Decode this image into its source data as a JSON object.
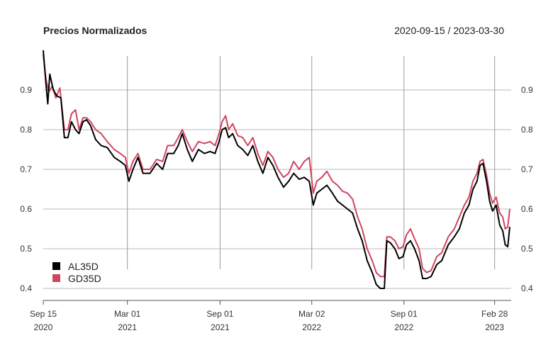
{
  "chart_data": {
    "type": "line",
    "title": "Precios Normalizados",
    "date_range": "2020-09-15 / 2023-03-30",
    "x_start": "2020-09-15",
    "x_end": "2023-03-30",
    "ylim": [
      0.38,
      1.0
    ],
    "y_ticks": [
      0.4,
      0.5,
      0.6,
      0.7,
      0.8,
      0.9
    ],
    "y_tick_labels": [
      "0.4",
      "0.5",
      "0.6",
      "0.7",
      "0.8",
      "0.9"
    ],
    "x_ticks": [
      {
        "date": "2020-09-15",
        "line1": "Sep 15",
        "line2": "2020"
      },
      {
        "date": "2021-03-01",
        "line1": "Mar 01",
        "line2": "2021"
      },
      {
        "date": "2021-09-01",
        "line1": "Sep 01",
        "line2": "2021"
      },
      {
        "date": "2022-03-02",
        "line1": "Mar 02",
        "line2": "2022"
      },
      {
        "date": "2022-09-01",
        "line1": "Sep 01",
        "line2": "2022"
      },
      {
        "date": "2023-02-28",
        "line1": "Feb 28",
        "line2": "2023"
      }
    ],
    "grid": true,
    "legend_position": "bottom-left",
    "series": [
      {
        "name": "AL35D",
        "color": "#000000",
        "points": [
          [
            "2020-09-15",
            1.0
          ],
          [
            "2020-09-20",
            0.92
          ],
          [
            "2020-09-24",
            0.865
          ],
          [
            "2020-09-28",
            0.94
          ],
          [
            "2020-10-05",
            0.9
          ],
          [
            "2020-10-12",
            0.885
          ],
          [
            "2020-10-20",
            0.88
          ],
          [
            "2020-10-27",
            0.78
          ],
          [
            "2020-11-03",
            0.78
          ],
          [
            "2020-11-10",
            0.82
          ],
          [
            "2020-11-18",
            0.8
          ],
          [
            "2020-11-25",
            0.79
          ],
          [
            "2020-12-03",
            0.82
          ],
          [
            "2020-12-10",
            0.825
          ],
          [
            "2020-12-18",
            0.81
          ],
          [
            "2020-12-28",
            0.775
          ],
          [
            "2021-01-08",
            0.76
          ],
          [
            "2021-01-20",
            0.755
          ],
          [
            "2021-02-03",
            0.73
          ],
          [
            "2021-02-15",
            0.72
          ],
          [
            "2021-02-25",
            0.71
          ],
          [
            "2021-03-04",
            0.67
          ],
          [
            "2021-03-12",
            0.7
          ],
          [
            "2021-03-22",
            0.73
          ],
          [
            "2021-04-01",
            0.69
          ],
          [
            "2021-04-15",
            0.69
          ],
          [
            "2021-04-28",
            0.715
          ],
          [
            "2021-05-10",
            0.7
          ],
          [
            "2021-05-20",
            0.74
          ],
          [
            "2021-06-01",
            0.74
          ],
          [
            "2021-06-10",
            0.76
          ],
          [
            "2021-06-18",
            0.79
          ],
          [
            "2021-06-28",
            0.75
          ],
          [
            "2021-07-08",
            0.72
          ],
          [
            "2021-07-20",
            0.75
          ],
          [
            "2021-08-01",
            0.74
          ],
          [
            "2021-08-12",
            0.745
          ],
          [
            "2021-08-22",
            0.74
          ],
          [
            "2021-08-30",
            0.77
          ],
          [
            "2021-09-05",
            0.8
          ],
          [
            "2021-09-12",
            0.805
          ],
          [
            "2021-09-18",
            0.78
          ],
          [
            "2021-09-26",
            0.79
          ],
          [
            "2021-10-06",
            0.76
          ],
          [
            "2021-10-16",
            0.75
          ],
          [
            "2021-10-26",
            0.735
          ],
          [
            "2021-11-05",
            0.76
          ],
          [
            "2021-11-15",
            0.72
          ],
          [
            "2021-11-25",
            0.69
          ],
          [
            "2021-12-05",
            0.73
          ],
          [
            "2021-12-15",
            0.71
          ],
          [
            "2021-12-25",
            0.68
          ],
          [
            "2022-01-05",
            0.655
          ],
          [
            "2022-01-15",
            0.67
          ],
          [
            "2022-01-25",
            0.69
          ],
          [
            "2022-02-05",
            0.675
          ],
          [
            "2022-02-15",
            0.68
          ],
          [
            "2022-02-25",
            0.67
          ],
          [
            "2022-03-05",
            0.61
          ],
          [
            "2022-03-12",
            0.64
          ],
          [
            "2022-03-22",
            0.65
          ],
          [
            "2022-04-01",
            0.66
          ],
          [
            "2022-04-12",
            0.64
          ],
          [
            "2022-04-22",
            0.62
          ],
          [
            "2022-05-02",
            0.61
          ],
          [
            "2022-05-12",
            0.6
          ],
          [
            "2022-05-22",
            0.59
          ],
          [
            "2022-06-01",
            0.55
          ],
          [
            "2022-06-10",
            0.52
          ],
          [
            "2022-06-20",
            0.47
          ],
          [
            "2022-06-30",
            0.44
          ],
          [
            "2022-07-08",
            0.41
          ],
          [
            "2022-07-16",
            0.4
          ],
          [
            "2022-07-24",
            0.4
          ],
          [
            "2022-07-29",
            0.52
          ],
          [
            "2022-08-05",
            0.515
          ],
          [
            "2022-08-14",
            0.5
          ],
          [
            "2022-08-22",
            0.475
          ],
          [
            "2022-08-30",
            0.48
          ],
          [
            "2022-09-06",
            0.51
          ],
          [
            "2022-09-14",
            0.52
          ],
          [
            "2022-09-22",
            0.5
          ],
          [
            "2022-10-01",
            0.47
          ],
          [
            "2022-10-08",
            0.425
          ],
          [
            "2022-10-16",
            0.425
          ],
          [
            "2022-10-25",
            0.43
          ],
          [
            "2022-11-05",
            0.46
          ],
          [
            "2022-11-15",
            0.47
          ],
          [
            "2022-11-28",
            0.51
          ],
          [
            "2022-12-10",
            0.53
          ],
          [
            "2022-12-20",
            0.55
          ],
          [
            "2022-12-30",
            0.59
          ],
          [
            "2023-01-08",
            0.61
          ],
          [
            "2023-01-16",
            0.65
          ],
          [
            "2023-01-24",
            0.67
          ],
          [
            "2023-01-30",
            0.71
          ],
          [
            "2023-02-05",
            0.715
          ],
          [
            "2023-02-12",
            0.67
          ],
          [
            "2023-02-18",
            0.62
          ],
          [
            "2023-02-24",
            0.595
          ],
          [
            "2023-03-03",
            0.61
          ],
          [
            "2023-03-10",
            0.56
          ],
          [
            "2023-03-16",
            0.545
          ],
          [
            "2023-03-21",
            0.51
          ],
          [
            "2023-03-26",
            0.505
          ],
          [
            "2023-03-30",
            0.555
          ]
        ]
      },
      {
        "name": "GD35D",
        "color": "#d1455e",
        "points": [
          [
            "2020-09-15",
            0.99
          ],
          [
            "2020-09-20",
            0.93
          ],
          [
            "2020-09-26",
            0.895
          ],
          [
            "2020-10-03",
            0.91
          ],
          [
            "2020-10-10",
            0.88
          ],
          [
            "2020-10-18",
            0.905
          ],
          [
            "2020-10-27",
            0.8
          ],
          [
            "2020-11-03",
            0.8
          ],
          [
            "2020-11-10",
            0.84
          ],
          [
            "2020-11-18",
            0.85
          ],
          [
            "2020-11-25",
            0.8
          ],
          [
            "2020-12-03",
            0.83
          ],
          [
            "2020-12-10",
            0.83
          ],
          [
            "2020-12-18",
            0.82
          ],
          [
            "2020-12-28",
            0.8
          ],
          [
            "2021-01-08",
            0.79
          ],
          [
            "2021-01-20",
            0.77
          ],
          [
            "2021-02-03",
            0.75
          ],
          [
            "2021-02-15",
            0.74
          ],
          [
            "2021-02-25",
            0.73
          ],
          [
            "2021-03-04",
            0.69
          ],
          [
            "2021-03-12",
            0.72
          ],
          [
            "2021-03-22",
            0.74
          ],
          [
            "2021-04-01",
            0.7
          ],
          [
            "2021-04-15",
            0.7
          ],
          [
            "2021-04-28",
            0.725
          ],
          [
            "2021-05-10",
            0.72
          ],
          [
            "2021-05-20",
            0.76
          ],
          [
            "2021-06-01",
            0.76
          ],
          [
            "2021-06-10",
            0.78
          ],
          [
            "2021-06-18",
            0.8
          ],
          [
            "2021-06-28",
            0.77
          ],
          [
            "2021-07-08",
            0.745
          ],
          [
            "2021-07-20",
            0.77
          ],
          [
            "2021-08-01",
            0.765
          ],
          [
            "2021-08-12",
            0.77
          ],
          [
            "2021-08-22",
            0.76
          ],
          [
            "2021-08-30",
            0.79
          ],
          [
            "2021-09-05",
            0.82
          ],
          [
            "2021-09-12",
            0.835
          ],
          [
            "2021-09-18",
            0.8
          ],
          [
            "2021-09-26",
            0.815
          ],
          [
            "2021-10-06",
            0.785
          ],
          [
            "2021-10-16",
            0.78
          ],
          [
            "2021-10-26",
            0.76
          ],
          [
            "2021-11-05",
            0.78
          ],
          [
            "2021-11-15",
            0.74
          ],
          [
            "2021-11-25",
            0.71
          ],
          [
            "2021-12-05",
            0.745
          ],
          [
            "2021-12-15",
            0.73
          ],
          [
            "2021-12-25",
            0.7
          ],
          [
            "2022-01-05",
            0.68
          ],
          [
            "2022-01-15",
            0.69
          ],
          [
            "2022-01-25",
            0.72
          ],
          [
            "2022-02-05",
            0.7
          ],
          [
            "2022-02-15",
            0.72
          ],
          [
            "2022-02-25",
            0.73
          ],
          [
            "2022-03-05",
            0.64
          ],
          [
            "2022-03-12",
            0.67
          ],
          [
            "2022-03-22",
            0.68
          ],
          [
            "2022-04-01",
            0.695
          ],
          [
            "2022-04-12",
            0.67
          ],
          [
            "2022-04-22",
            0.66
          ],
          [
            "2022-05-02",
            0.645
          ],
          [
            "2022-05-12",
            0.64
          ],
          [
            "2022-05-22",
            0.625
          ],
          [
            "2022-06-01",
            0.58
          ],
          [
            "2022-06-10",
            0.55
          ],
          [
            "2022-06-20",
            0.5
          ],
          [
            "2022-06-30",
            0.47
          ],
          [
            "2022-07-08",
            0.44
          ],
          [
            "2022-07-16",
            0.43
          ],
          [
            "2022-07-24",
            0.43
          ],
          [
            "2022-07-29",
            0.53
          ],
          [
            "2022-08-05",
            0.53
          ],
          [
            "2022-08-14",
            0.52
          ],
          [
            "2022-08-22",
            0.5
          ],
          [
            "2022-08-30",
            0.505
          ],
          [
            "2022-09-06",
            0.535
          ],
          [
            "2022-09-14",
            0.55
          ],
          [
            "2022-09-22",
            0.525
          ],
          [
            "2022-10-01",
            0.5
          ],
          [
            "2022-10-08",
            0.45
          ],
          [
            "2022-10-16",
            0.44
          ],
          [
            "2022-10-25",
            0.445
          ],
          [
            "2022-11-05",
            0.48
          ],
          [
            "2022-11-15",
            0.49
          ],
          [
            "2022-11-28",
            0.53
          ],
          [
            "2022-12-10",
            0.55
          ],
          [
            "2022-12-20",
            0.58
          ],
          [
            "2022-12-30",
            0.61
          ],
          [
            "2023-01-08",
            0.63
          ],
          [
            "2023-01-16",
            0.67
          ],
          [
            "2023-01-24",
            0.69
          ],
          [
            "2023-01-30",
            0.72
          ],
          [
            "2023-02-05",
            0.725
          ],
          [
            "2023-02-12",
            0.685
          ],
          [
            "2023-02-18",
            0.64
          ],
          [
            "2023-02-24",
            0.615
          ],
          [
            "2023-03-03",
            0.63
          ],
          [
            "2023-03-10",
            0.59
          ],
          [
            "2023-03-16",
            0.58
          ],
          [
            "2023-03-21",
            0.55
          ],
          [
            "2023-03-26",
            0.555
          ],
          [
            "2023-03-30",
            0.6
          ]
        ]
      }
    ]
  }
}
